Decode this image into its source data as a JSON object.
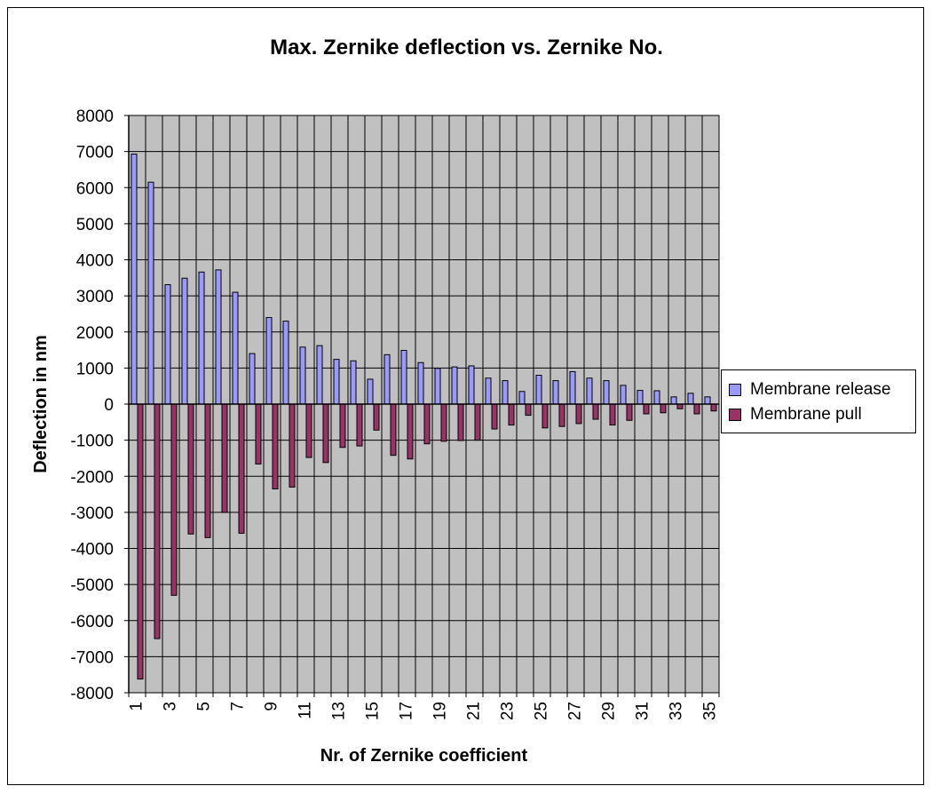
{
  "chart_data": {
    "type": "bar",
    "title": "Max. Zernike deflection vs. Zernike No.",
    "xlabel": "Nr. of Zernike coefficient",
    "ylabel": "Deflection in nm",
    "ylim": [
      -8000,
      8000
    ],
    "ytick_step": 1000,
    "grid": true,
    "legend_position": "right",
    "categories": [
      1,
      2,
      3,
      4,
      5,
      6,
      7,
      8,
      9,
      10,
      11,
      12,
      13,
      14,
      15,
      16,
      17,
      18,
      19,
      20,
      21,
      22,
      23,
      24,
      25,
      26,
      27,
      28,
      29,
      30,
      31,
      32,
      33,
      34,
      35
    ],
    "x_tick_labels": [
      1,
      3,
      5,
      7,
      9,
      11,
      13,
      15,
      17,
      19,
      21,
      23,
      25,
      27,
      29,
      31,
      33,
      35
    ],
    "series": [
      {
        "name": "Membrane release",
        "color": "#9999ff",
        "values": [
          6930,
          6150,
          3310,
          3490,
          3660,
          3720,
          3100,
          1400,
          2400,
          2300,
          1580,
          1620,
          1240,
          1200,
          690,
          1370,
          1490,
          1150,
          990,
          1030,
          1060,
          720,
          650,
          350,
          800,
          650,
          900,
          720,
          650,
          520,
          380,
          370,
          200,
          300,
          200
        ]
      },
      {
        "name": "Membrane pull",
        "color": "#993366",
        "values": [
          -7620,
          -6500,
          -5300,
          -3600,
          -3700,
          -3000,
          -3580,
          -1660,
          -2350,
          -2300,
          -1480,
          -1620,
          -1200,
          -1160,
          -720,
          -1420,
          -1520,
          -1100,
          -1030,
          -1010,
          -1000,
          -690,
          -580,
          -310,
          -660,
          -620,
          -540,
          -420,
          -580,
          -450,
          -270,
          -240,
          -130,
          -270,
          -190
        ]
      }
    ]
  }
}
